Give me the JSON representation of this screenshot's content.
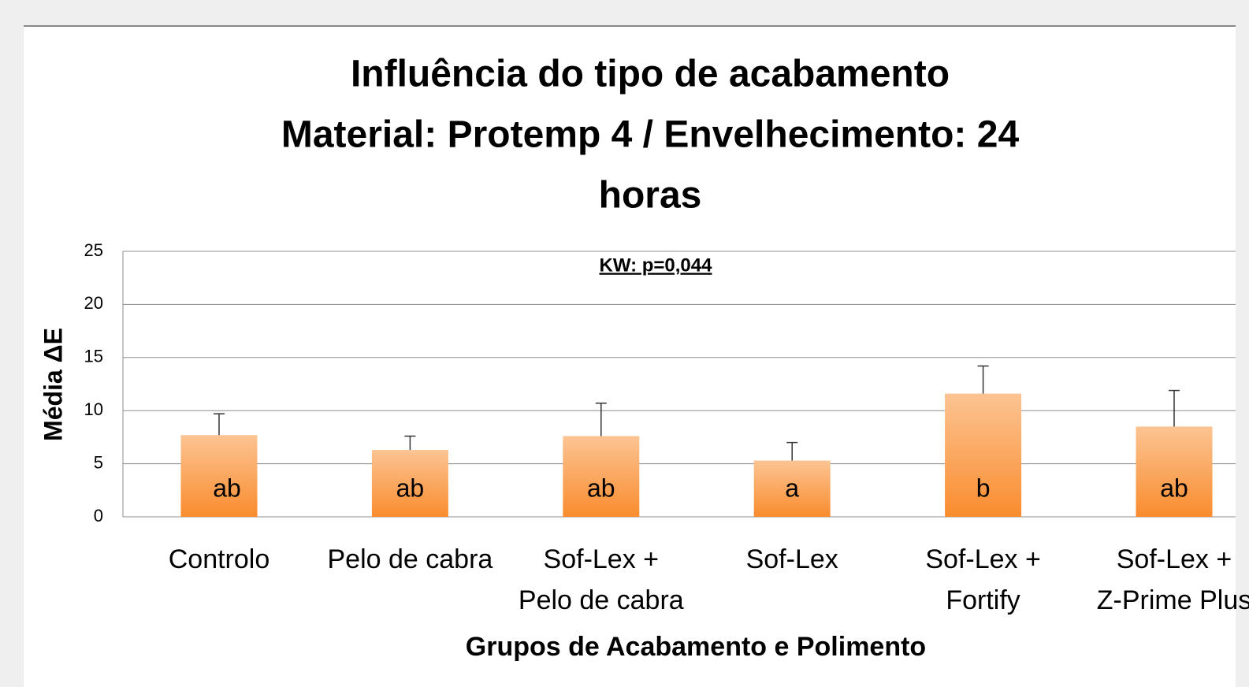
{
  "chart_data": {
    "type": "bar",
    "title": [
      "Influência do tipo de acabamento",
      "Material: Protemp 4 / Envelhecimento: 24",
      "horas"
    ],
    "annotation": "KW: p=0,044",
    "y_label": "Média ΔE",
    "x_label": "Grupos de Acabamento e Polimento",
    "categories": [
      [
        "Controlo"
      ],
      [
        "Pelo de cabra"
      ],
      [
        "Sof-Lex +",
        "Pelo de cabra"
      ],
      [
        "Sof-Lex"
      ],
      [
        "Sof-Lex +",
        "Fortify"
      ],
      [
        "Sof-Lex +",
        "Z-Prime Plus"
      ]
    ],
    "values": [
      7.7,
      6.3,
      7.6,
      5.3,
      11.6,
      8.5
    ],
    "errors": [
      2.0,
      1.3,
      3.1,
      1.7,
      2.6,
      3.4
    ],
    "group_labels": [
      "ab",
      "ab",
      "ab",
      "a",
      "b",
      "ab"
    ],
    "color": "#f98c2e",
    "ylim": [
      0,
      25
    ],
    "yticks": [
      0,
      5,
      10,
      15,
      20,
      25
    ],
    "grid": true
  }
}
